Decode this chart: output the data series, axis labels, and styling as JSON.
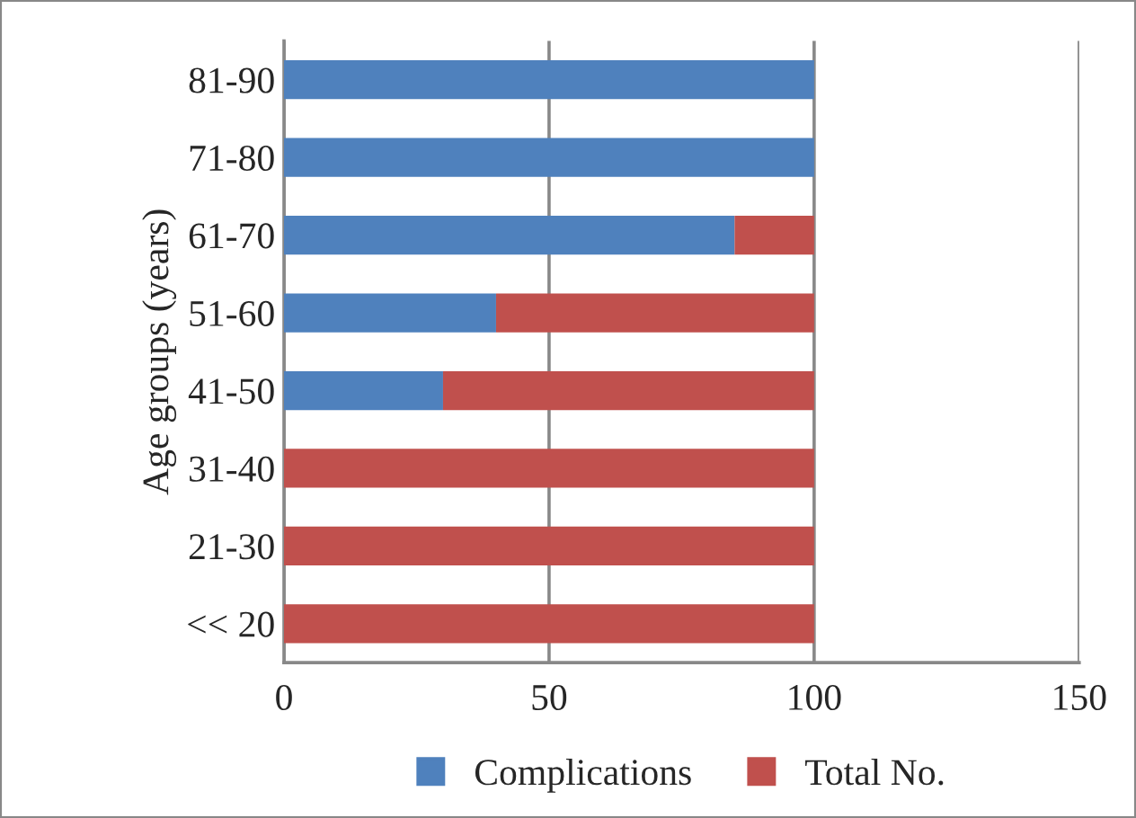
{
  "chart_data": {
    "type": "bar",
    "orientation": "horizontal",
    "stacked": true,
    "ylabel": "Age groups (years)",
    "categories": [
      "81-90",
      "71-80",
      "61-70",
      "51-60",
      "41-50",
      "31-40",
      "21-30",
      "<< 20"
    ],
    "series": [
      {
        "name": "Complications",
        "color": "#4f81bd",
        "values": [
          100,
          100,
          85,
          40,
          30,
          0,
          0,
          0
        ]
      },
      {
        "name": "Total No.",
        "color": "#c0504d",
        "values": [
          0,
          0,
          15,
          60,
          70,
          100,
          100,
          100
        ]
      }
    ],
    "xlim": [
      0,
      150
    ],
    "xticks": [
      0,
      50,
      100,
      150
    ],
    "grid": "x",
    "legend": "bottom"
  }
}
